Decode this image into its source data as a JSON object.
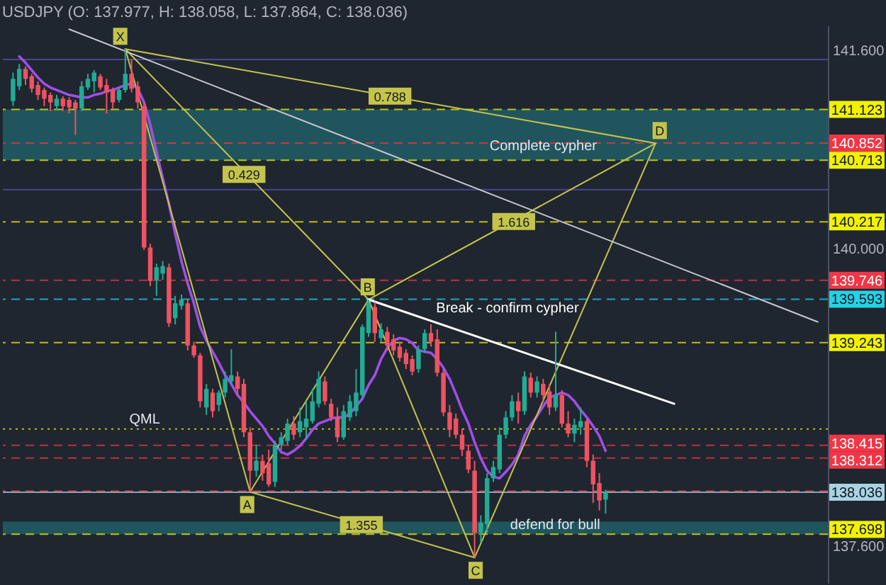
{
  "chart_data": {
    "type": "candlestick",
    "title": "USDJPY (O: 137.977, H: 138.058, L: 137.864, C: 138.036)",
    "categories": [
      null,
      null,
      null,
      null,
      null,
      null,
      null,
      null,
      null,
      null,
      null,
      null,
      null,
      null,
      null,
      null,
      null,
      null,
      null,
      null,
      null,
      null,
      null,
      null,
      null,
      null,
      null,
      null,
      null,
      null,
      null,
      null,
      null,
      null,
      null,
      null,
      null,
      null,
      null,
      null,
      null,
      null,
      null,
      null,
      null,
      null,
      null,
      null,
      null,
      null,
      null,
      null,
      null,
      null,
      null,
      null,
      null,
      null,
      null,
      null,
      null,
      null,
      null,
      null,
      null,
      null,
      null,
      null,
      null,
      null,
      null,
      null,
      null,
      null,
      null,
      null,
      null,
      null,
      null,
      null,
      null,
      null,
      null,
      null,
      null,
      null,
      null,
      null,
      null,
      null,
      null,
      null,
      null,
      null,
      null,
      null,
      null,
      null,
      null,
      null,
      null,
      null,
      null,
      null,
      null,
      null,
      null,
      null,
      null,
      null,
      null,
      null,
      null,
      null,
      null,
      null,
      null,
      null,
      null,
      null,
      null,
      null,
      null,
      null,
      null,
      null,
      null,
      null,
      null,
      null
    ],
    "ohlc": [
      [
        141.19,
        141.42,
        141.15,
        141.37
      ],
      [
        141.31,
        141.49,
        141.28,
        141.45
      ],
      [
        141.45,
        141.47,
        141.32,
        141.37
      ],
      [
        141.39,
        141.41,
        141.26,
        141.29
      ],
      [
        141.32,
        141.35,
        141.2,
        141.24
      ],
      [
        141.28,
        141.3,
        141.15,
        141.21
      ],
      [
        141.24,
        141.26,
        141.11,
        141.18
      ],
      [
        141.15,
        141.24,
        141.12,
        141.21
      ],
      [
        141.21,
        141.23,
        141.11,
        141.15
      ],
      [
        141.2,
        141.22,
        141.09,
        141.14
      ],
      [
        141.18,
        141.2,
        140.92,
        141.13
      ],
      [
        141.13,
        141.35,
        141.11,
        141.31
      ],
      [
        141.3,
        141.41,
        141.28,
        141.37
      ],
      [
        141.35,
        141.44,
        141.26,
        141.42
      ],
      [
        141.39,
        141.41,
        141.28,
        141.3
      ],
      [
        141.32,
        141.37,
        141.09,
        141.26
      ],
      [
        141.28,
        141.3,
        141.13,
        141.18
      ],
      [
        141.2,
        141.3,
        141.18,
        141.28
      ],
      [
        141.28,
        141.61,
        141.26,
        141.41
      ],
      [
        141.41,
        141.53,
        141.26,
        141.29
      ],
      [
        141.31,
        141.35,
        141.13,
        141.18
      ],
      [
        141.15,
        141.18,
        139.99,
        140.01
      ],
      [
        140.01,
        140.04,
        139.7,
        139.74
      ],
      [
        139.75,
        139.88,
        139.62,
        139.85
      ],
      [
        139.8,
        139.9,
        139.75,
        139.86
      ],
      [
        139.85,
        139.88,
        139.37,
        139.4
      ],
      [
        139.44,
        139.62,
        139.39,
        139.56
      ],
      [
        139.54,
        139.63,
        139.51,
        139.59
      ],
      [
        139.56,
        139.59,
        139.18,
        139.22
      ],
      [
        139.22,
        139.25,
        139.12,
        139.14
      ],
      [
        139.14,
        139.16,
        138.72,
        138.77
      ],
      [
        138.72,
        138.91,
        138.66,
        138.87
      ],
      [
        138.84,
        138.87,
        138.64,
        138.69
      ],
      [
        138.74,
        138.86,
        138.69,
        138.84
      ],
      [
        138.84,
        139.01,
        138.8,
        138.95
      ],
      [
        138.93,
        139.19,
        138.91,
        138.98
      ],
      [
        138.97,
        139.01,
        138.82,
        138.87
      ],
      [
        138.91,
        138.95,
        138.48,
        138.52
      ],
      [
        138.52,
        138.56,
        138.04,
        138.21
      ],
      [
        138.21,
        138.42,
        138.16,
        138.29
      ],
      [
        138.29,
        138.34,
        138.13,
        138.19
      ],
      [
        138.27,
        138.38,
        138.08,
        138.1
      ],
      [
        138.12,
        138.45,
        138.08,
        138.42
      ],
      [
        138.42,
        138.52,
        138.38,
        138.48
      ],
      [
        138.45,
        138.63,
        138.42,
        138.59
      ],
      [
        138.59,
        138.65,
        138.46,
        138.5
      ],
      [
        138.52,
        138.72,
        138.48,
        138.61
      ],
      [
        138.56,
        138.77,
        138.46,
        138.63
      ],
      [
        138.61,
        138.87,
        138.59,
        138.77
      ],
      [
        138.75,
        139.01,
        138.72,
        138.95
      ],
      [
        138.93,
        138.97,
        138.74,
        138.77
      ],
      [
        138.75,
        138.79,
        138.61,
        138.64
      ],
      [
        138.64,
        138.72,
        138.44,
        138.48
      ],
      [
        138.48,
        138.74,
        138.46,
        138.69
      ],
      [
        138.64,
        138.82,
        138.61,
        138.77
      ],
      [
        138.69,
        139.03,
        138.65,
        138.84
      ],
      [
        138.82,
        139.39,
        138.79,
        139.37
      ],
      [
        139.32,
        139.59,
        139.29,
        139.56
      ],
      [
        139.53,
        139.57,
        139.25,
        139.32
      ],
      [
        139.28,
        139.4,
        139.25,
        139.35
      ],
      [
        139.33,
        139.37,
        139.18,
        139.22
      ],
      [
        139.27,
        139.31,
        139.14,
        139.18
      ],
      [
        139.21,
        139.25,
        139.09,
        139.12
      ],
      [
        139.16,
        139.19,
        139.03,
        139.07
      ],
      [
        139.11,
        139.14,
        138.98,
        139.01
      ],
      [
        139.03,
        139.22,
        139.0,
        139.19
      ],
      [
        139.19,
        139.35,
        139.16,
        139.32
      ],
      [
        139.32,
        139.39,
        139.21,
        139.25
      ],
      [
        139.27,
        139.35,
        138.97,
        139.0
      ],
      [
        139.0,
        139.03,
        138.65,
        138.68
      ],
      [
        138.68,
        138.74,
        138.48,
        138.54
      ],
      [
        138.63,
        138.67,
        138.47,
        138.5
      ],
      [
        138.5,
        138.55,
        138.33,
        138.38
      ],
      [
        138.37,
        138.42,
        138.19,
        138.22
      ],
      [
        138.21,
        138.29,
        137.51,
        137.71
      ],
      [
        137.71,
        137.85,
        137.63,
        137.79
      ],
      [
        137.78,
        138.19,
        137.71,
        138.15
      ],
      [
        138.15,
        138.29,
        138.12,
        138.24
      ],
      [
        138.22,
        138.56,
        138.19,
        138.5
      ],
      [
        138.5,
        138.69,
        138.47,
        138.64
      ],
      [
        138.64,
        138.82,
        138.61,
        138.77
      ],
      [
        138.77,
        138.84,
        138.59,
        138.69
      ],
      [
        138.69,
        139.01,
        138.66,
        138.97
      ],
      [
        138.96,
        139.0,
        138.8,
        138.84
      ],
      [
        138.84,
        138.97,
        138.8,
        138.93
      ],
      [
        138.91,
        138.95,
        138.76,
        138.82
      ],
      [
        138.85,
        138.91,
        138.66,
        138.72
      ],
      [
        138.72,
        139.33,
        138.69,
        138.82
      ],
      [
        138.82,
        138.86,
        138.56,
        138.59
      ],
      [
        138.59,
        138.69,
        138.48,
        138.51
      ],
      [
        138.51,
        138.63,
        138.44,
        138.58
      ],
      [
        138.56,
        138.72,
        138.5,
        138.61
      ],
      [
        138.61,
        138.63,
        138.24,
        138.29
      ],
      [
        138.29,
        138.34,
        137.95,
        138.1
      ],
      [
        138.11,
        138.19,
        137.89,
        137.97
      ],
      [
        137.977,
        138.058,
        137.864,
        138.036
      ],
      null,
      null,
      null,
      null,
      null,
      null,
      null,
      null,
      null,
      null,
      null,
      null,
      null,
      null,
      null,
      null,
      null,
      null,
      null,
      null,
      null,
      null,
      null,
      null,
      null,
      null,
      null,
      null,
      null,
      null,
      null,
      null,
      null,
      null
    ],
    "colors": [
      "#22ab94",
      "#22ab94",
      "#ef5261",
      "#ef5261",
      "#ef5261",
      "#ef5261",
      "#ef5261",
      "#22ab94",
      "#ef5261",
      "#ef5261",
      "#ef5261",
      "#22ab94",
      "#22ab94",
      "#22ab94",
      "#ef5261",
      "#ef5261",
      "#ef5261",
      "#22ab94",
      "#22ab94",
      "#ef5261",
      "#ef5261",
      "#ef5261",
      "#ef5261",
      "#22ab94",
      "#22ab94",
      "#ef5261",
      "#22ab94",
      "#22ab94",
      "#ef5261",
      "#ef5261",
      "#ef5261",
      "#22ab94",
      "#ef5261",
      "#22ab94",
      "#22ab94",
      "#22ab94",
      "#ef5261",
      "#ef5261",
      "#ef5261",
      "#22ab94",
      "#ef5261",
      "#ef5261",
      "#22ab94",
      "#22ab94",
      "#22ab94",
      "#ef5261",
      "#22ab94",
      "#22ab94",
      "#22ab94",
      "#22ab94",
      "#ef5261",
      "#ef5261",
      "#ef5261",
      "#22ab94",
      "#22ab94",
      "#22ab94",
      "#22ab94",
      "#22ab94",
      "#ef5261",
      "#22ab94",
      "#ef5261",
      "#ef5261",
      "#ef5261",
      "#ef5261",
      "#ef5261",
      "#22ab94",
      "#22ab94",
      "#ef5261",
      "#ef5261",
      "#ef5261",
      "#ef5261",
      "#ef5261",
      "#ef5261",
      "#ef5261",
      "#ef5261",
      "#22ab94",
      "#22ab94",
      "#22ab94",
      "#22ab94",
      "#22ab94",
      "#22ab94",
      "#ef5261",
      "#22ab94",
      "#ef5261",
      "#22ab94",
      "#ef5261",
      "#ef5261",
      "#22ab94",
      "#ef5261",
      "#ef5261",
      "#22ab94",
      "#22ab94",
      "#ef5261",
      "#ef5261",
      "#ef5261",
      "#22ab94",
      null,
      null,
      null,
      null,
      null,
      null,
      null,
      null,
      null,
      null,
      null,
      null,
      null,
      null,
      null,
      null,
      null,
      null,
      null,
      null,
      null,
      null,
      null,
      null,
      null,
      null,
      null,
      null,
      null,
      null,
      null,
      null,
      null,
      null
    ],
    "series": [
      {
        "type": "line",
        "color": "#a24ee8",
        "values": [
          null,
          141.55,
          141.5,
          141.44,
          141.38,
          141.33,
          141.3,
          141.28,
          141.26,
          141.24,
          141.23,
          141.22,
          141.22,
          141.24,
          141.25,
          141.27,
          141.28,
          141.3,
          141.32,
          141.33,
          141.29,
          141.18,
          141.0,
          140.78,
          140.57,
          140.36,
          140.12,
          139.9,
          139.72,
          139.56,
          139.37,
          139.26,
          139.17,
          139.08,
          138.98,
          138.91,
          138.82,
          138.76,
          138.69,
          138.63,
          138.57,
          138.49,
          138.43,
          138.36,
          138.34,
          138.37,
          138.41,
          138.47,
          138.54,
          138.59,
          138.61,
          138.63,
          138.64,
          138.64,
          138.67,
          138.73,
          138.79,
          138.9,
          138.98,
          139.11,
          139.2,
          139.26,
          139.28,
          139.27,
          139.24,
          139.18,
          139.17,
          139.16,
          139.11,
          139.04,
          138.95,
          138.83,
          138.7,
          138.59,
          138.44,
          138.31,
          138.21,
          138.16,
          138.15,
          138.2,
          138.26,
          138.34,
          138.49,
          138.58,
          138.65,
          138.73,
          138.8,
          138.82,
          138.84,
          138.82,
          138.77,
          138.7,
          138.64,
          138.57,
          138.49,
          138.37,
          null,
          null,
          null,
          null,
          null,
          null,
          null,
          null,
          null,
          null,
          null,
          null,
          null,
          null,
          null,
          null,
          null,
          null,
          null,
          null,
          null,
          null,
          null,
          null,
          null,
          null,
          null,
          null,
          null,
          null,
          null,
          null,
          null,
          null
        ]
      },
      {
        "type": "line",
        "color": "#c4c44c",
        "values": [
          null,
          null,
          null,
          null,
          null,
          null,
          null,
          null,
          null,
          null,
          null,
          null,
          null,
          null,
          null,
          null,
          null,
          null,
          141.61,
          null,
          null,
          null,
          null,
          null,
          null,
          null,
          null,
          null,
          null,
          null,
          null,
          null,
          null,
          null,
          null,
          null,
          null,
          null,
          138.04,
          null,
          null,
          null,
          null,
          null,
          null,
          null,
          null,
          null,
          null,
          null,
          null,
          null,
          null,
          null,
          null,
          null,
          null,
          139.59,
          null,
          null,
          null,
          null,
          null,
          null,
          null,
          null,
          null,
          null,
          null,
          null,
          null,
          null,
          null,
          null,
          137.51,
          null,
          null,
          null,
          null,
          null,
          null,
          null,
          null,
          null,
          null,
          null,
          null,
          null,
          null,
          null,
          null,
          null,
          null,
          null,
          null,
          null,
          null,
          null,
          null,
          null,
          null,
          null,
          null,
          140.85,
          null,
          null,
          null,
          null,
          null,
          null,
          null,
          null,
          null,
          null,
          null,
          null,
          null,
          null,
          null,
          null,
          null,
          null,
          null,
          null,
          null,
          null,
          null,
          null,
          null,
          null
        ],
        "value_labels": [
          null,
          null,
          null,
          null,
          null,
          null,
          null,
          null,
          null,
          null,
          null,
          null,
          null,
          null,
          null,
          null,
          null,
          null,
          "X",
          null,
          null,
          null,
          null,
          null,
          null,
          null,
          null,
          null,
          null,
          null,
          null,
          null,
          null,
          null,
          null,
          null,
          null,
          null,
          "A",
          null,
          null,
          null,
          null,
          null,
          null,
          null,
          null,
          null,
          null,
          null,
          null,
          null,
          null,
          null,
          null,
          null,
          null,
          "B",
          null,
          null,
          null,
          null,
          null,
          null,
          null,
          null,
          null,
          null,
          null,
          null,
          null,
          null,
          null,
          null,
          "C",
          null,
          null,
          null,
          null,
          null,
          null,
          null,
          null,
          null,
          null,
          null,
          null,
          null,
          null,
          null,
          null,
          null,
          null,
          null,
          null,
          null,
          null,
          null,
          null,
          null,
          null,
          null,
          null,
          "D",
          null,
          null,
          null,
          null,
          null,
          null,
          null,
          null,
          null,
          null,
          null,
          null,
          null,
          null,
          null,
          null,
          null,
          null,
          null,
          null,
          null,
          null,
          null,
          null,
          null,
          null
        ]
      },
      {
        "type": "line",
        "name": "0.429",
        "color": "#c4c44c",
        "values": [
          null,
          null,
          null,
          null,
          null,
          null,
          null,
          null,
          null,
          null,
          null,
          null,
          null,
          null,
          null,
          null,
          null,
          null,
          141.61,
          null,
          null,
          null,
          null,
          null,
          null,
          null,
          null,
          null,
          null,
          null,
          null,
          null,
          null,
          null,
          null,
          null,
          null,
          null,
          null,
          null,
          null,
          null,
          null,
          null,
          null,
          null,
          null,
          null,
          null,
          null,
          null,
          null,
          null,
          null,
          null,
          null,
          null,
          139.59,
          null,
          null,
          null,
          null,
          null,
          null,
          null,
          null,
          null,
          null,
          null,
          null,
          null,
          null,
          null,
          null,
          null,
          null,
          null,
          null,
          null,
          null,
          null,
          null,
          null,
          null,
          null,
          null,
          null,
          null,
          null,
          null,
          null,
          null,
          null,
          null,
          null,
          null,
          null,
          null,
          null,
          null,
          null,
          null,
          null,
          null,
          null,
          null,
          null,
          null,
          null,
          null,
          null,
          null,
          null,
          null,
          null,
          null,
          null,
          null,
          null,
          null,
          null,
          null,
          null,
          null,
          null,
          null,
          null,
          null,
          null,
          null
        ]
      },
      {
        "type": "line",
        "name": "0.788",
        "color": "#c4c44c",
        "values": [
          null,
          null,
          null,
          null,
          null,
          null,
          null,
          null,
          null,
          null,
          null,
          null,
          null,
          null,
          null,
          null,
          null,
          null,
          141.61,
          null,
          null,
          null,
          null,
          null,
          null,
          null,
          null,
          null,
          null,
          null,
          null,
          null,
          null,
          null,
          null,
          null,
          null,
          null,
          null,
          null,
          null,
          null,
          null,
          null,
          null,
          null,
          null,
          null,
          null,
          null,
          null,
          null,
          null,
          null,
          null,
          null,
          null,
          null,
          null,
          null,
          null,
          null,
          null,
          null,
          null,
          null,
          null,
          null,
          null,
          null,
          null,
          null,
          null,
          null,
          null,
          null,
          null,
          null,
          null,
          null,
          null,
          null,
          null,
          null,
          null,
          null,
          null,
          null,
          null,
          null,
          null,
          null,
          null,
          null,
          null,
          null,
          null,
          null,
          null,
          null,
          null,
          null,
          null,
          140.85,
          null,
          null,
          null,
          null,
          null,
          null,
          null,
          null,
          null,
          null,
          null,
          null,
          null,
          null,
          null,
          null,
          null,
          null,
          null,
          null,
          null,
          null,
          null,
          null,
          null,
          null
        ]
      },
      {
        "type": "line",
        "name": "1.616",
        "color": "#c4c44c",
        "values": [
          null,
          null,
          null,
          null,
          null,
          null,
          null,
          null,
          null,
          null,
          null,
          null,
          null,
          null,
          null,
          null,
          null,
          null,
          null,
          null,
          null,
          null,
          null,
          null,
          null,
          null,
          null,
          null,
          null,
          null,
          null,
          null,
          null,
          null,
          null,
          null,
          null,
          null,
          null,
          null,
          null,
          null,
          null,
          null,
          null,
          null,
          null,
          null,
          null,
          null,
          null,
          null,
          null,
          null,
          null,
          null,
          null,
          139.59,
          null,
          null,
          null,
          null,
          null,
          null,
          null,
          null,
          null,
          null,
          null,
          null,
          null,
          null,
          null,
          null,
          null,
          null,
          null,
          null,
          null,
          null,
          null,
          null,
          null,
          null,
          null,
          null,
          null,
          null,
          null,
          null,
          null,
          null,
          null,
          null,
          null,
          null,
          null,
          null,
          null,
          null,
          null,
          null,
          null,
          140.85,
          null,
          null,
          null,
          null,
          null,
          null,
          null,
          null,
          null,
          null,
          null,
          null,
          null,
          null,
          null,
          null,
          null,
          null,
          null,
          null,
          null,
          null,
          null,
          null,
          null,
          null
        ]
      },
      {
        "type": "line",
        "name": "1.355",
        "color": "#c4c44c",
        "values": [
          null,
          null,
          null,
          null,
          null,
          null,
          null,
          null,
          null,
          null,
          null,
          null,
          null,
          null,
          null,
          null,
          null,
          null,
          null,
          null,
          null,
          null,
          null,
          null,
          null,
          null,
          null,
          null,
          null,
          null,
          null,
          null,
          null,
          null,
          null,
          null,
          null,
          null,
          138.04,
          null,
          null,
          null,
          null,
          null,
          null,
          null,
          null,
          null,
          null,
          null,
          null,
          null,
          null,
          null,
          null,
          null,
          null,
          null,
          null,
          null,
          null,
          null,
          null,
          null,
          null,
          null,
          null,
          null,
          null,
          null,
          null,
          null,
          null,
          null,
          137.51,
          null,
          null,
          null,
          null,
          null,
          null,
          null,
          null,
          null,
          null,
          null,
          null,
          null,
          null,
          null,
          null,
          null,
          null,
          null,
          null,
          null,
          null,
          null,
          null,
          null,
          null,
          null,
          null,
          null,
          null,
          null,
          null,
          null,
          null,
          null,
          null,
          null,
          null,
          null,
          null,
          null,
          null,
          null,
          null,
          null,
          null,
          null,
          null,
          null,
          null,
          null,
          null,
          null,
          null,
          null
        ]
      },
      {
        "type": "line",
        "color": "#c5c8cf",
        "values": [
          null,
          null,
          null,
          null,
          null,
          null,
          null,
          null,
          null,
          141.77,
          null,
          null,
          null,
          null,
          null,
          null,
          null,
          null,
          null,
          null,
          null,
          null,
          null,
          null,
          null,
          null,
          null,
          null,
          null,
          null,
          null,
          null,
          null,
          null,
          null,
          null,
          null,
          null,
          null,
          null,
          null,
          null,
          null,
          null,
          null,
          null,
          null,
          null,
          null,
          null,
          null,
          null,
          null,
          null,
          null,
          null,
          null,
          null,
          null,
          null,
          null,
          null,
          null,
          null,
          null,
          null,
          null,
          null,
          null,
          null,
          null,
          null,
          null,
          null,
          null,
          null,
          null,
          null,
          null,
          null,
          null,
          null,
          null,
          null,
          null,
          null,
          null,
          null,
          null,
          null,
          null,
          null,
          null,
          null,
          null,
          null,
          null,
          null,
          null,
          null,
          null,
          null,
          null,
          null,
          null,
          null,
          null,
          null,
          null,
          null,
          null,
          null,
          null,
          null,
          null,
          null,
          null,
          null,
          null,
          null,
          null,
          null,
          null,
          null,
          null,
          null,
          null,
          null,
          null,
          139.41
        ]
      },
      {
        "type": "line",
        "name": "Break - confirm cypher",
        "color": "#ffffff",
        "values": [
          null,
          null,
          null,
          null,
          null,
          null,
          null,
          null,
          null,
          null,
          null,
          null,
          null,
          null,
          null,
          null,
          null,
          null,
          null,
          null,
          null,
          null,
          null,
          null,
          null,
          null,
          null,
          null,
          null,
          null,
          null,
          null,
          null,
          null,
          null,
          null,
          null,
          null,
          null,
          null,
          null,
          null,
          null,
          null,
          null,
          null,
          null,
          null,
          null,
          null,
          null,
          null,
          null,
          null,
          null,
          null,
          null,
          139.59,
          null,
          null,
          null,
          null,
          null,
          null,
          null,
          null,
          null,
          null,
          null,
          null,
          null,
          null,
          null,
          null,
          null,
          null,
          null,
          null,
          null,
          null,
          null,
          null,
          null,
          null,
          null,
          null,
          null,
          null,
          null,
          null,
          null,
          null,
          null,
          null,
          null,
          null,
          null,
          null,
          null,
          null,
          null,
          null,
          null,
          null,
          null,
          null,
          138.75,
          null,
          null,
          null,
          null,
          null,
          null,
          null,
          null,
          null,
          null,
          null,
          null,
          null,
          null,
          null,
          null,
          null,
          null,
          null,
          null,
          null,
          null,
          null
        ]
      }
    ],
    "ylim": [
      137.3,
      141.8
    ],
    "yticks": [
      {
        "value": 141.6,
        "label": "141.600"
      },
      {
        "value": 140.0,
        "label": "140.000"
      },
      {
        "value": 137.6,
        "label": "137.600"
      }
    ],
    "ref_lines": [
      {
        "axis": "y",
        "value": 141.526,
        "color": "#5553b0",
        "line_style": "solid"
      },
      {
        "axis": "y",
        "value": 141.123,
        "label": "141.123",
        "color": "#f2f200",
        "line_style": "dashed"
      },
      {
        "axis": "y",
        "value": 140.852,
        "label": "140.852",
        "color": "#f23645",
        "line_style": "dashed"
      },
      {
        "axis": "y",
        "value": 140.713,
        "label": "140.713",
        "color": "#f2f200",
        "line_style": "dashed"
      },
      {
        "axis": "y",
        "value": 140.476,
        "color": "#5553b0",
        "line_style": "solid"
      },
      {
        "axis": "y",
        "value": 140.217,
        "label": "140.217",
        "color": "#f2f200",
        "line_style": "dashed"
      },
      {
        "axis": "y",
        "value": 139.746,
        "label": "139.746",
        "color": "#f23645",
        "line_style": "dashed"
      },
      {
        "axis": "y",
        "value": 139.593,
        "label": "139.593",
        "color": "#22d3e6",
        "line_style": "dashed"
      },
      {
        "axis": "y",
        "value": 139.243,
        "label": "139.243",
        "color": "#f2f200",
        "line_style": "dashed"
      },
      {
        "axis": "y",
        "value": 138.546,
        "color": "#f2f200",
        "line_style": "dotted"
      },
      {
        "axis": "y",
        "value": 138.415,
        "label": "138.415",
        "color": "#f23645",
        "line_style": "dashed"
      },
      {
        "axis": "y",
        "value": 138.312,
        "label": "138.312",
        "color": "#f23645",
        "line_style": "dashed"
      },
      {
        "axis": "y",
        "value": 138.047,
        "color": "#f23645",
        "line_style": "dashed"
      },
      {
        "axis": "y",
        "value": 138.036,
        "label": "138.036",
        "color": "#a8d4e0",
        "line_style": "solid"
      },
      {
        "axis": "y",
        "value": 137.698,
        "label": "137.698",
        "color": "#f2f200",
        "line_style": "dashed"
      }
    ],
    "bands": [
      {
        "axis": "y",
        "from": 140.713,
        "to": 141.123,
        "label": "Complete cypher",
        "color": "#23737a"
      },
      {
        "axis": "y",
        "from": 137.698,
        "to": 137.8,
        "label": "defend for bull",
        "color": "#23737a"
      }
    ],
    "annotations": [
      "QML"
    ]
  }
}
